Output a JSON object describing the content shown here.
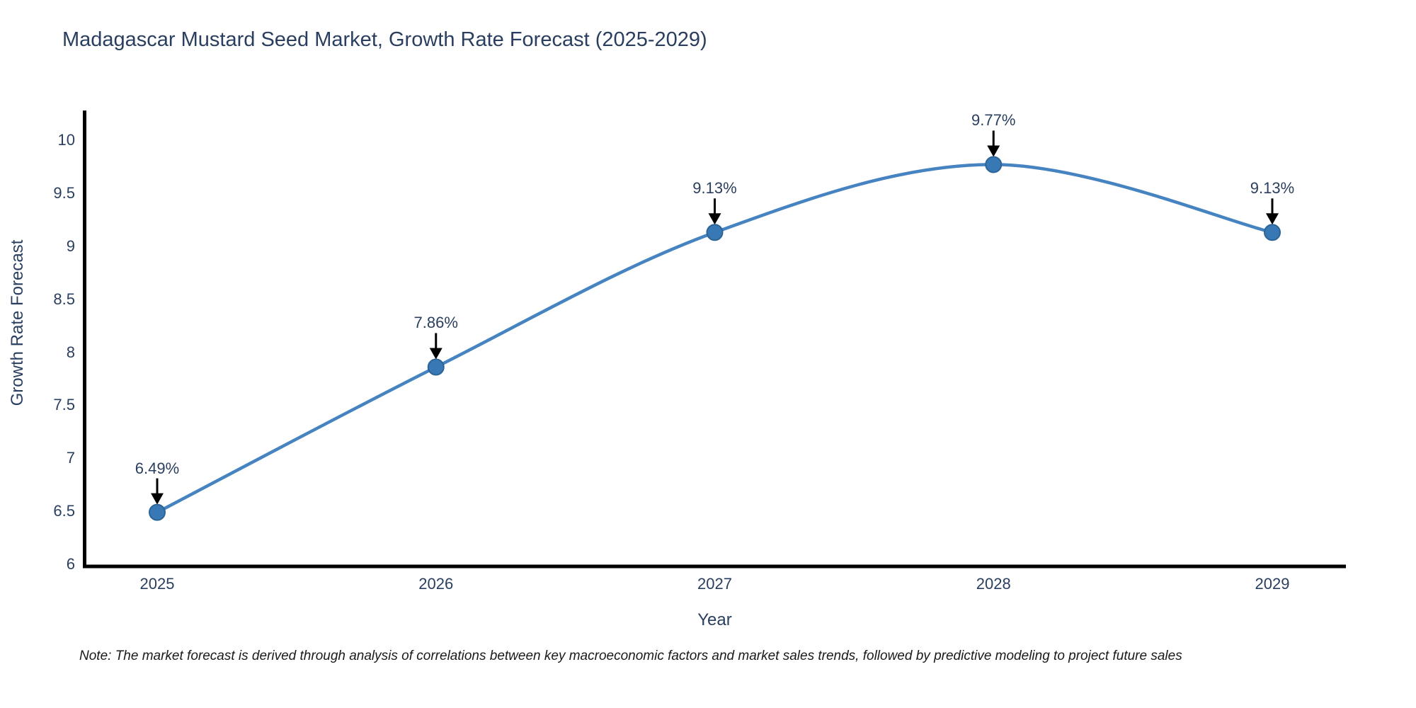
{
  "title": "Madagascar Mustard Seed Market, Growth Rate Forecast (2025-2029)",
  "note": "Note: The market forecast is derived through analysis of correlations between key macroeconomic factors and market sales trends, followed by predictive modeling to project future sales",
  "chart_data": {
    "type": "line",
    "title": "Madagascar Mustard Seed Market, Growth Rate Forecast (2025-2029)",
    "xlabel": "Year",
    "ylabel": "Growth Rate Forecast",
    "x": [
      "2025",
      "2026",
      "2027",
      "2028",
      "2029"
    ],
    "values": [
      6.49,
      7.86,
      9.13,
      9.77,
      9.13
    ],
    "point_labels": [
      "6.49%",
      "7.86%",
      "9.13%",
      "9.77%",
      "9.13%"
    ],
    "ytick_labels": [
      "6",
      "6.5",
      "7",
      "7.5",
      "8",
      "8.5",
      "9",
      "9.5",
      "10"
    ],
    "yticks": [
      6,
      6.5,
      7,
      7.5,
      8,
      8.5,
      9,
      9.5,
      10
    ],
    "ylim": [
      6,
      10.28
    ],
    "grid": false,
    "legend": false,
    "curve": "spline",
    "line_color": "#4583c1",
    "marker_color": "#3878b4",
    "marker_edge_color": "#2d6496",
    "arrow_color": "#000000",
    "axis_color": "#000000",
    "text_color": "#2a3f5f"
  }
}
